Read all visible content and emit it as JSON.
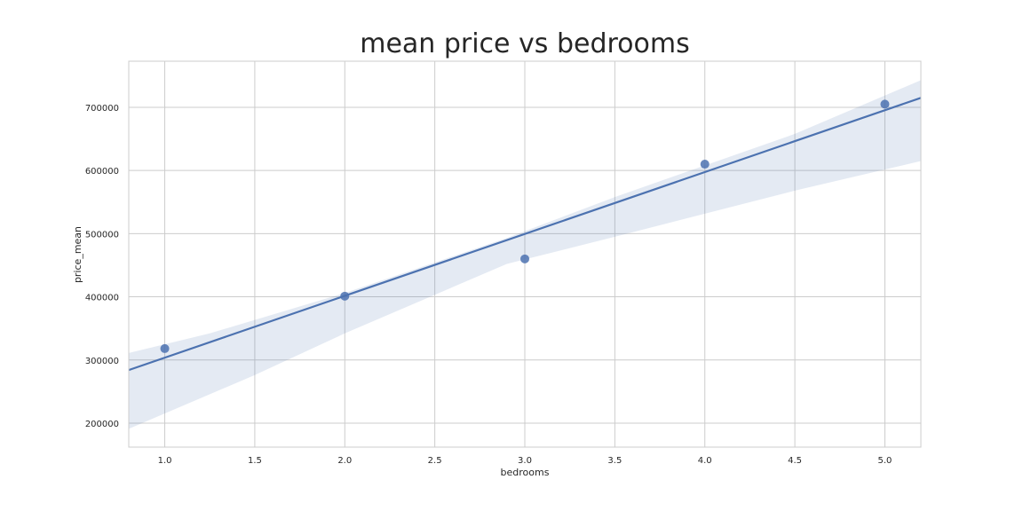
{
  "chart_data": {
    "type": "scatter",
    "title": "mean price vs bedrooms",
    "xlabel": "bedrooms",
    "ylabel": "price_mean",
    "xlim": [
      0.8,
      5.2
    ],
    "ylim": [
      162000,
      773000
    ],
    "xticks": [
      "1.0",
      "1.5",
      "2.0",
      "2.5",
      "3.0",
      "3.5",
      "4.0",
      "4.5",
      "5.0"
    ],
    "yticks": [
      "200000",
      "300000",
      "400000",
      "500000",
      "600000",
      "700000"
    ],
    "grid": true,
    "series": [
      {
        "points": [
          {
            "x": 1,
            "y": 318000
          },
          {
            "x": 2,
            "y": 401000
          },
          {
            "x": 3,
            "y": 460000
          },
          {
            "x": 4,
            "y": 610000
          },
          {
            "x": 5,
            "y": 705000
          }
        ]
      }
    ],
    "regression_line": [
      {
        "x": 0.8,
        "y": 284000
      },
      {
        "x": 5.2,
        "y": 715000
      }
    ],
    "confidence_band": {
      "upper": [
        {
          "x": 0.8,
          "y": 311000
        },
        {
          "x": 1.25,
          "y": 342000
        },
        {
          "x": 2.0,
          "y": 406000
        },
        {
          "x": 2.9,
          "y": 493000
        },
        {
          "x": 3.5,
          "y": 558000
        },
        {
          "x": 4.5,
          "y": 658000
        },
        {
          "x": 5.2,
          "y": 743000
        }
      ],
      "lower": [
        {
          "x": 0.8,
          "y": 191000
        },
        {
          "x": 1.5,
          "y": 276000
        },
        {
          "x": 2.0,
          "y": 342000
        },
        {
          "x": 2.9,
          "y": 452000
        },
        {
          "x": 3.5,
          "y": 495000
        },
        {
          "x": 4.5,
          "y": 568000
        },
        {
          "x": 5.2,
          "y": 615000
        }
      ]
    },
    "colors": {
      "point": "#4c72b0",
      "line": "#4c72b0",
      "band": "#4c72b0",
      "grid": "#cccccc",
      "frame": "#cccccc"
    }
  }
}
